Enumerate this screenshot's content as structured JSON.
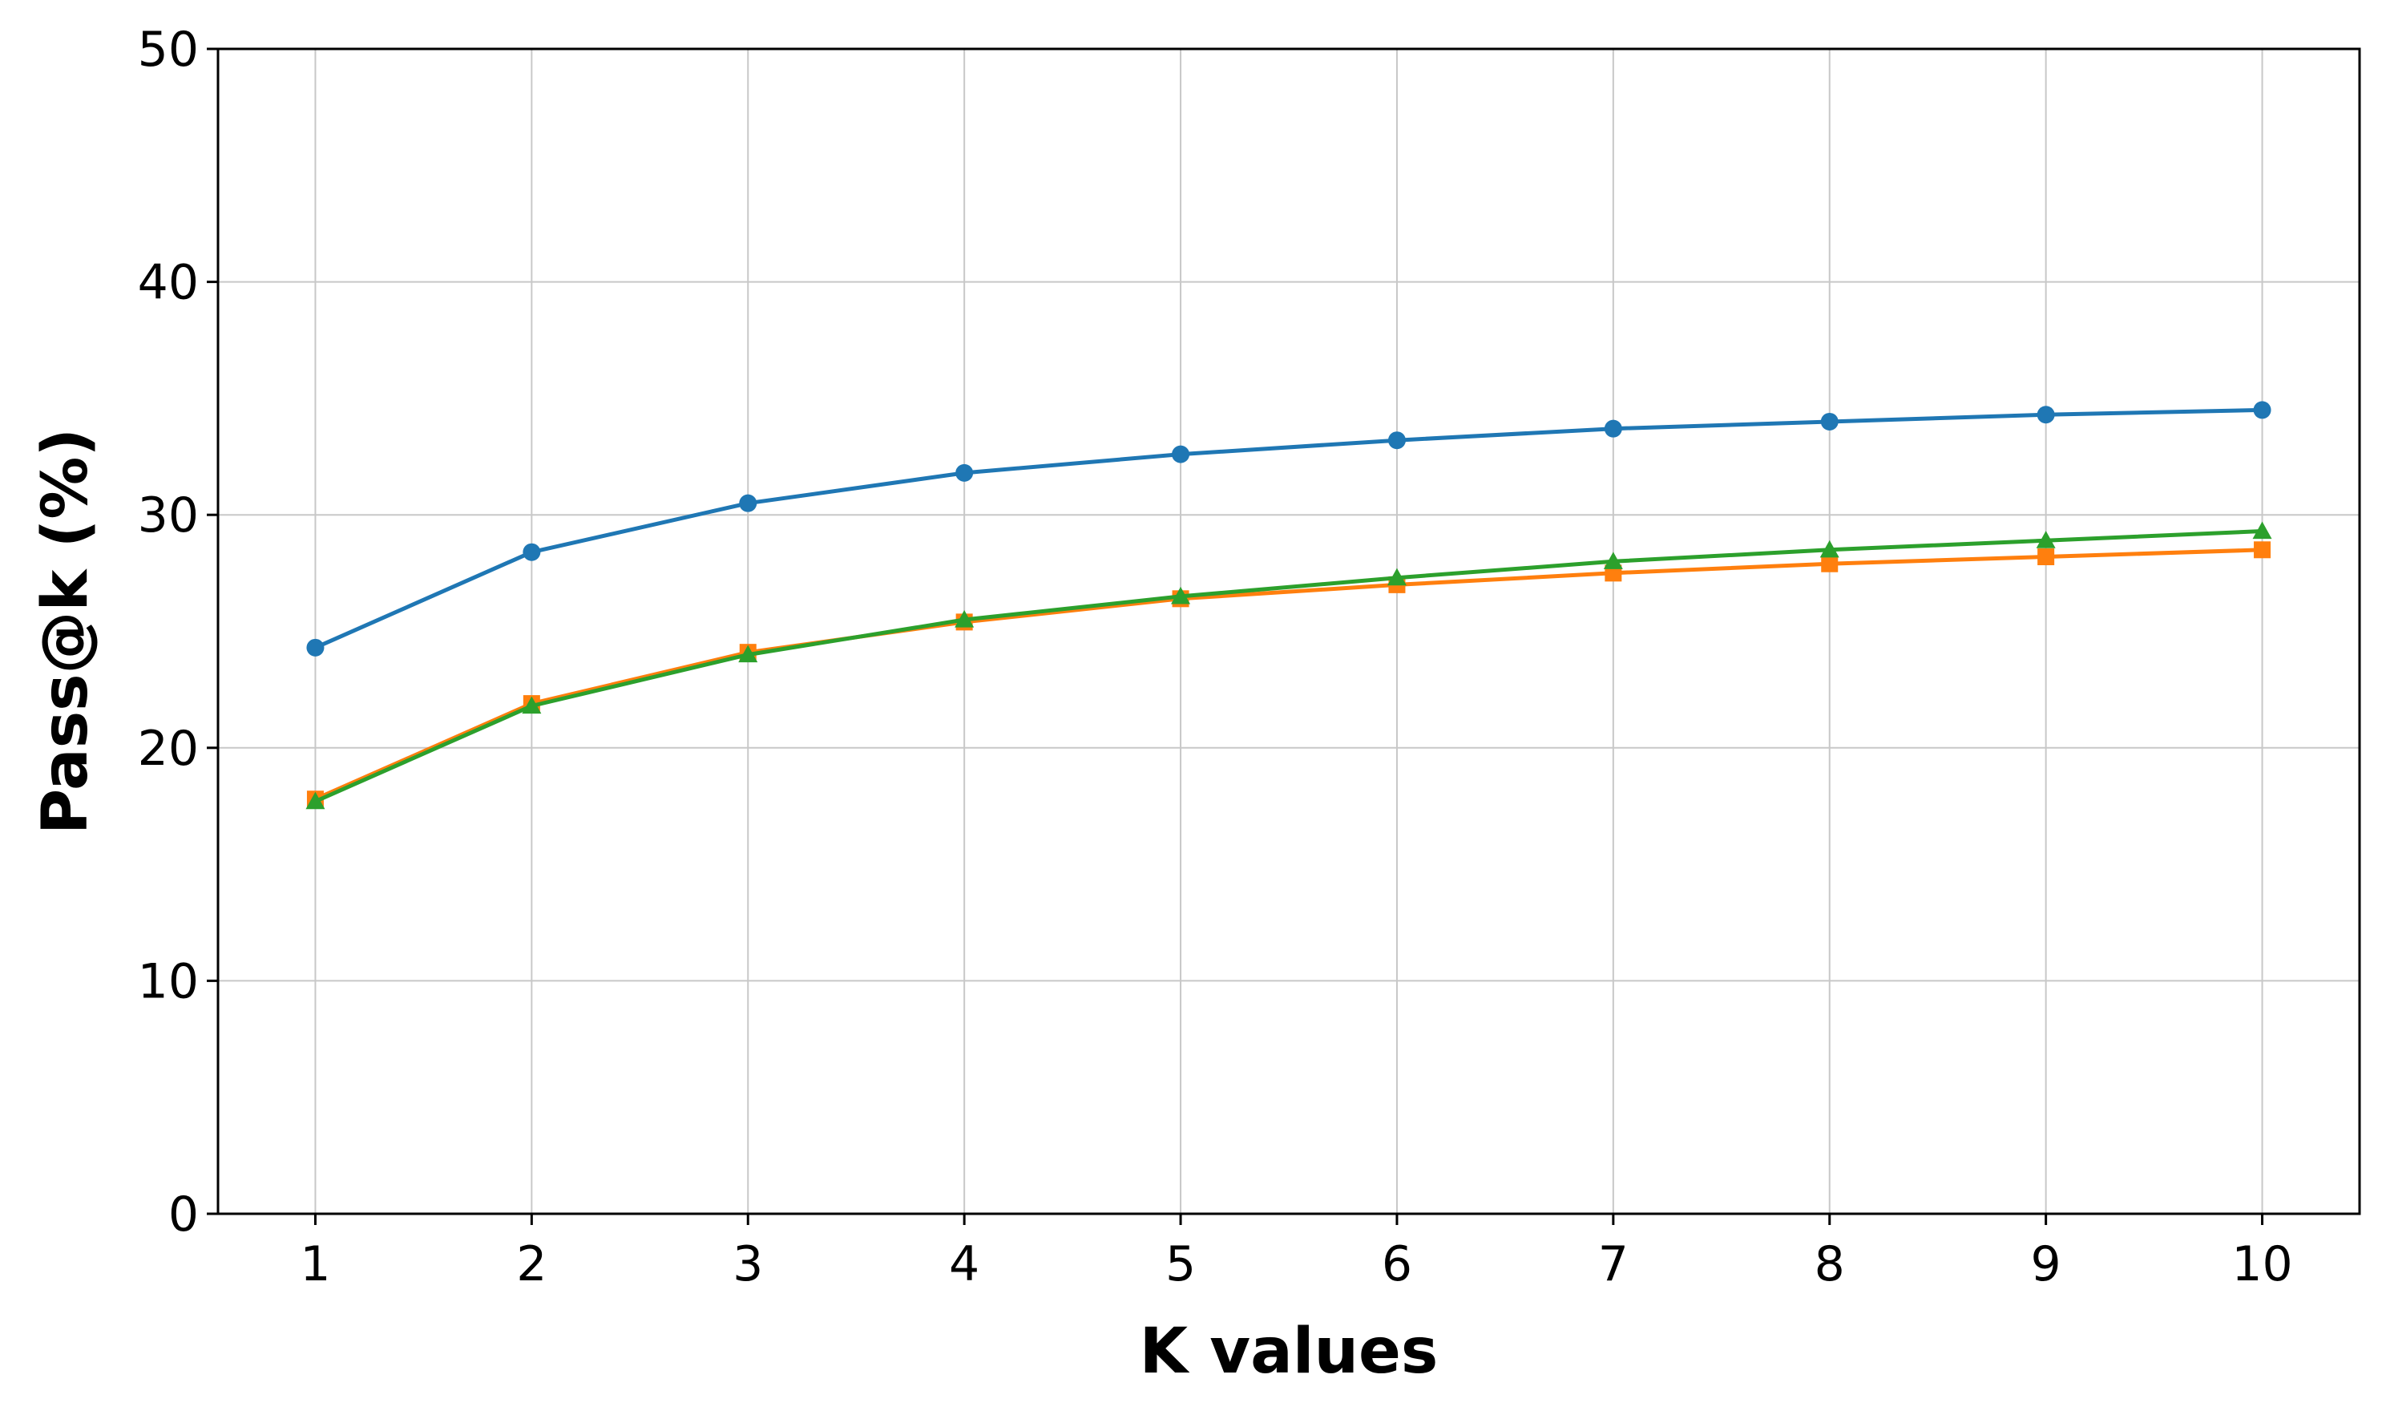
{
  "chart_data": {
    "type": "line",
    "title": "",
    "xlabel": "K values",
    "ylabel": "Pass@k (%)",
    "x": [
      1,
      2,
      3,
      4,
      5,
      6,
      7,
      8,
      9,
      10
    ],
    "xlim": [
      0.55,
      10.45
    ],
    "ylim": [
      0,
      50
    ],
    "yticks": [
      0,
      10,
      20,
      30,
      40,
      50
    ],
    "grid": true,
    "legend": "none",
    "series": [
      {
        "color": "#1f77b4",
        "marker": "circle",
        "values": [
          24.3,
          28.4,
          30.5,
          31.8,
          32.6,
          33.2,
          33.7,
          34.0,
          34.3,
          34.5
        ]
      },
      {
        "color": "#ff7f0e",
        "marker": "square",
        "values": [
          17.8,
          21.9,
          24.1,
          25.4,
          26.4,
          27.0,
          27.5,
          27.9,
          28.2,
          28.5
        ]
      },
      {
        "color": "#2ca02c",
        "marker": "triangle",
        "values": [
          17.7,
          21.8,
          24.0,
          25.5,
          26.5,
          27.3,
          28.0,
          28.5,
          28.9,
          29.3
        ]
      }
    ]
  }
}
